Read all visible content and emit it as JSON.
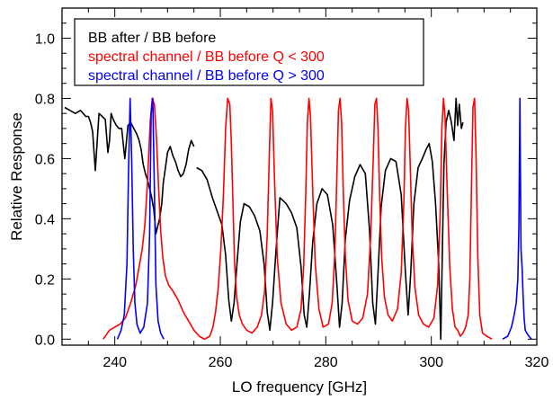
{
  "chart_data": {
    "type": "line",
    "xlabel": "LO frequency [GHz]",
    "ylabel": "Relative Response",
    "xlim": [
      230,
      320
    ],
    "ylim": [
      -0.02,
      1.1
    ],
    "x_ticks": [
      240,
      260,
      280,
      300,
      320
    ],
    "x_tick_labels": [
      "240",
      "260",
      "280",
      "300",
      "320"
    ],
    "y_ticks": [
      0.0,
      0.2,
      0.4,
      0.6,
      0.8,
      1.0
    ],
    "y_tick_labels": [
      "0.0",
      "0.2",
      "0.4",
      "0.6",
      "0.8",
      "1.0"
    ],
    "grid": false,
    "legend_position": "top-left",
    "legend": [
      {
        "label": "BB after / BB before",
        "color": "#000000"
      },
      {
        "label": "spectral channel / BB before Q < 300",
        "color": "#ff0000"
      },
      {
        "label": "spectral channel / BB before Q > 300",
        "color": "#0000ff"
      }
    ],
    "series": [
      {
        "color": "#000000",
        "x": [
          230.5,
          231.5,
          232.5,
          233.5,
          234.5,
          235.0,
          235.4,
          235.8,
          236.3,
          237.0,
          237.6,
          238.2,
          238.7,
          239.0,
          239.3,
          239.7,
          240.3,
          240.8,
          241.3,
          241.9,
          242.5,
          243.0,
          243.6,
          244.2,
          244.6,
          245.0,
          245.4,
          245.8,
          246.2,
          246.6,
          247.0,
          247.4,
          247.8,
          248.2,
          248.5,
          248.9,
          249.2,
          249.6,
          250.0,
          250.5,
          251.0,
          251.5,
          252.0,
          252.5,
          253.0,
          253.5,
          254.0,
          254.5,
          255.0
        ],
        "y": [
          0.77,
          0.76,
          0.75,
          0.76,
          0.74,
          0.74,
          0.72,
          0.69,
          0.56,
          0.75,
          0.74,
          0.73,
          0.62,
          0.66,
          0.75,
          0.73,
          0.71,
          0.7,
          0.7,
          0.6,
          0.71,
          0.72,
          0.7,
          0.68,
          0.66,
          0.63,
          0.58,
          0.55,
          0.53,
          0.5,
          0.47,
          0.43,
          0.35,
          0.38,
          0.4,
          0.45,
          0.52,
          0.57,
          0.62,
          0.64,
          0.61,
          0.59,
          0.56,
          0.54,
          0.55,
          0.58,
          0.63,
          0.66,
          0.64
        ]
      },
      {
        "color": "#000000",
        "x": [
          255.5,
          256.5,
          257.5,
          258.5,
          259.5,
          260.3,
          261.0,
          261.6,
          262.1,
          262.6,
          263.2,
          263.8,
          264.5,
          265.5,
          266.5,
          267.5,
          268.3,
          268.9,
          269.4,
          269.9,
          270.5,
          271.3,
          272.5,
          273.5,
          274.5,
          275.3,
          275.9,
          276.4,
          276.9,
          277.5,
          278.3,
          279.3,
          280.3,
          281.3,
          282.1,
          282.6,
          283.1,
          283.7,
          284.5,
          285.5,
          286.5,
          287.5,
          288.3,
          288.9,
          289.4,
          289.9,
          290.5,
          291.3,
          292.3,
          293.3,
          294.3,
          295.1,
          295.6,
          296.1,
          296.7,
          297.5,
          298.3,
          299.0,
          299.6,
          300.2,
          300.8,
          301.4,
          301.8,
          302.1,
          302.4,
          302.8,
          303.3,
          303.8,
          304.3,
          304.7,
          305.0,
          305.3,
          305.7,
          306.0
        ],
        "y": [
          0.57,
          0.56,
          0.53,
          0.47,
          0.42,
          0.38,
          0.28,
          0.13,
          0.06,
          0.12,
          0.26,
          0.39,
          0.45,
          0.44,
          0.41,
          0.36,
          0.25,
          0.09,
          0.03,
          0.12,
          0.28,
          0.47,
          0.45,
          0.42,
          0.37,
          0.24,
          0.08,
          0.04,
          0.15,
          0.32,
          0.45,
          0.5,
          0.48,
          0.38,
          0.18,
          0.04,
          0.12,
          0.33,
          0.46,
          0.54,
          0.58,
          0.55,
          0.36,
          0.12,
          0.05,
          0.22,
          0.44,
          0.56,
          0.6,
          0.59,
          0.48,
          0.22,
          0.08,
          0.22,
          0.45,
          0.57,
          0.6,
          0.63,
          0.65,
          0.59,
          0.45,
          0.25,
          0.0,
          0.3,
          0.58,
          0.72,
          0.76,
          0.72,
          0.66,
          0.8,
          0.71,
          0.78,
          0.7,
          0.72
        ]
      },
      {
        "color": "#ff0000",
        "x": [
          237.8,
          239.0,
          240.0,
          241.0,
          242.0,
          243.0,
          244.0,
          244.6,
          245.2,
          245.7,
          246.2,
          246.7,
          247.1,
          247.5,
          247.9,
          248.3,
          248.7,
          249.1,
          249.6,
          250.2,
          251.0,
          252.0,
          253.0,
          254.0,
          255.0,
          256.0,
          257.0,
          258.0,
          258.6,
          259.1,
          259.6,
          260.1,
          260.6,
          261.0,
          261.4,
          261.8,
          262.1,
          262.4,
          262.7,
          263.1,
          263.6,
          264.2,
          265.0,
          266.0,
          267.0,
          267.8,
          268.4,
          268.9,
          269.3,
          269.6,
          269.9,
          270.3,
          270.8,
          271.5,
          272.5,
          273.5,
          274.5,
          275.3,
          275.8,
          276.2,
          276.5,
          276.8,
          277.1,
          277.5,
          278.0,
          278.7,
          279.5,
          280.5,
          281.2,
          281.7,
          282.1,
          282.4,
          282.7,
          283.0,
          283.3,
          283.7,
          284.2,
          285.0,
          286.0,
          287.0,
          287.9,
          288.5,
          289.0,
          289.3,
          289.6,
          289.9,
          290.2,
          290.6,
          291.1,
          291.8,
          292.6,
          293.6,
          294.3,
          294.8,
          295.1,
          295.4,
          295.7,
          296.0,
          296.4,
          296.9,
          297.6,
          298.5,
          299.5,
          300.5,
          301.2,
          301.7,
          302.0,
          302.3,
          302.6,
          303.0,
          303.5,
          304.0,
          304.5,
          305.0,
          305.5,
          306.0,
          306.5,
          307.0,
          307.3,
          307.6,
          307.9,
          308.2,
          308.5,
          308.8,
          309.2,
          309.7,
          310.5,
          311.5
        ],
        "y": [
          0.0,
          0.03,
          0.04,
          0.05,
          0.07,
          0.12,
          0.18,
          0.24,
          0.3,
          0.38,
          0.52,
          0.72,
          0.8,
          0.78,
          0.67,
          0.5,
          0.36,
          0.27,
          0.21,
          0.18,
          0.16,
          0.13,
          0.09,
          0.06,
          0.03,
          0.01,
          0.0,
          0.01,
          0.04,
          0.09,
          0.17,
          0.3,
          0.48,
          0.7,
          0.8,
          0.78,
          0.65,
          0.45,
          0.26,
          0.14,
          0.08,
          0.05,
          0.03,
          0.02,
          0.04,
          0.08,
          0.16,
          0.35,
          0.62,
          0.8,
          0.76,
          0.52,
          0.27,
          0.12,
          0.05,
          0.03,
          0.04,
          0.1,
          0.24,
          0.48,
          0.72,
          0.8,
          0.74,
          0.5,
          0.25,
          0.1,
          0.04,
          0.05,
          0.12,
          0.28,
          0.55,
          0.76,
          0.8,
          0.72,
          0.5,
          0.28,
          0.13,
          0.06,
          0.05,
          0.07,
          0.15,
          0.34,
          0.6,
          0.78,
          0.8,
          0.7,
          0.48,
          0.27,
          0.14,
          0.08,
          0.06,
          0.1,
          0.22,
          0.46,
          0.7,
          0.8,
          0.76,
          0.58,
          0.34,
          0.17,
          0.08,
          0.05,
          0.04,
          0.07,
          0.18,
          0.42,
          0.7,
          0.8,
          0.74,
          0.5,
          0.24,
          0.1,
          0.04,
          0.03,
          0.01,
          0.02,
          0.04,
          0.08,
          0.2,
          0.5,
          0.77,
          0.8,
          0.6,
          0.28,
          0.08,
          0.02,
          0.01,
          0.0
        ]
      },
      {
        "color": "#0000ff",
        "x": [
          240.5,
          241.2,
          241.8,
          242.3,
          242.6,
          242.9,
          243.2,
          243.5,
          243.8,
          244.2,
          244.8,
          245.5,
          246.2,
          246.6,
          246.9,
          247.2,
          247.5,
          247.8,
          248.2,
          248.7,
          249.3
        ],
        "y": [
          0.0,
          0.03,
          0.08,
          0.25,
          0.55,
          0.8,
          0.6,
          0.3,
          0.12,
          0.05,
          0.02,
          0.04,
          0.12,
          0.35,
          0.75,
          0.8,
          0.5,
          0.18,
          0.06,
          0.02,
          0.0
        ]
      },
      {
        "color": "#0000ff",
        "x": [
          313.5,
          314.5,
          315.2,
          315.7,
          316.1,
          316.4,
          316.6,
          316.8,
          317.0,
          317.2,
          317.4,
          317.6,
          317.8,
          318.1,
          318.5,
          319.0
        ],
        "y": [
          0.0,
          0.01,
          0.04,
          0.08,
          0.12,
          0.2,
          0.38,
          0.8,
          0.3,
          0.24,
          0.15,
          0.07,
          0.03,
          0.02,
          0.01,
          0.0
        ]
      }
    ]
  }
}
